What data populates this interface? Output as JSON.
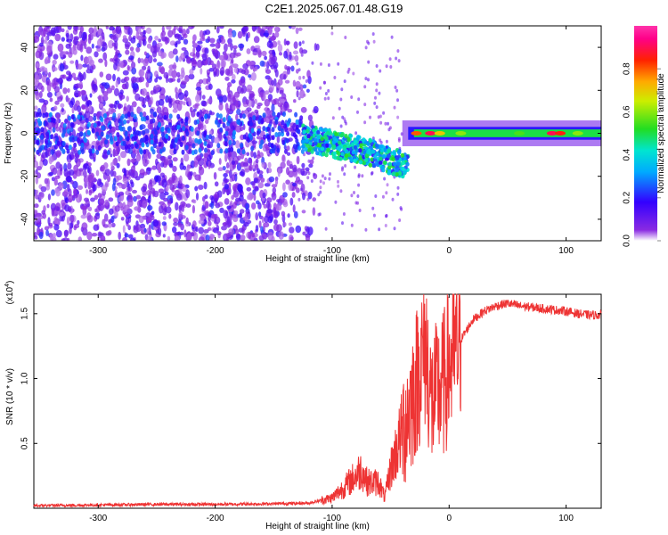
{
  "title": "C2E1.2025.067.01.48.G19",
  "colors": {
    "snr_line": "#ee3333",
    "axis": "#000000"
  },
  "chart_data": [
    {
      "type": "heatmap",
      "name": "spectrogram",
      "xlabel": "Height of straight line (km)",
      "ylabel": "Frequency (Hz)",
      "xlim": [
        -355,
        130
      ],
      "ylim": [
        -50,
        50
      ],
      "xticks": [
        -300,
        -200,
        -100,
        0,
        100
      ],
      "yticks": [
        -40,
        -20,
        0,
        20,
        40
      ],
      "colorbar": {
        "label": "Normalized spectral amplitude",
        "range": [
          0,
          1
        ],
        "ticks": [
          "0.0",
          "0.2",
          "0.4",
          "0.6",
          "0.8"
        ],
        "colormap": "rainbow (violet → blue → cyan → green → yellow → red → magenta)"
      },
      "features": {
        "noise_region_x": [
          -355,
          -125
        ],
        "noise_region_amplitude": 0.12,
        "signal_band_center_hz": 0,
        "signal_band_x": [
          -125,
          130
        ],
        "peak_amplitude_x": [
          -20,
          90
        ],
        "peak_amplitude": 0.95
      }
    },
    {
      "type": "line",
      "name": "snr",
      "xlabel": "Height of straight line (km)",
      "ylabel": "SNR (10 * v/v)",
      "y_multiplier": "(x10",
      "y_multiplier_exp": "4",
      "xlim": [
        -355,
        130
      ],
      "ylim": [
        0,
        1.65
      ],
      "xticks": [
        -300,
        -200,
        -100,
        0,
        100
      ],
      "yticks": [
        "0.5",
        "1.0",
        "1.5"
      ],
      "series": [
        {
          "x": [
            -355,
            -300,
            -250,
            -200,
            -150,
            -120,
            -100,
            -90,
            -80,
            -75,
            -70,
            -60,
            -55,
            -50,
            -45,
            -40,
            -35,
            -30,
            -25,
            -20,
            -15,
            -10,
            -5,
            0,
            10,
            20,
            30,
            40,
            50,
            60,
            70,
            80,
            90,
            100,
            110,
            120,
            130
          ],
          "y": [
            0.02,
            0.025,
            0.03,
            0.03,
            0.035,
            0.04,
            0.08,
            0.16,
            0.25,
            0.3,
            0.2,
            0.2,
            0.08,
            0.3,
            0.45,
            0.6,
            0.75,
            0.9,
            1.1,
            1.25,
            0.8,
            0.9,
            0.95,
            1.1,
            1.3,
            1.45,
            1.52,
            1.56,
            1.58,
            1.56,
            1.55,
            1.54,
            1.53,
            1.52,
            1.5,
            1.49,
            1.49
          ]
        }
      ]
    }
  ]
}
